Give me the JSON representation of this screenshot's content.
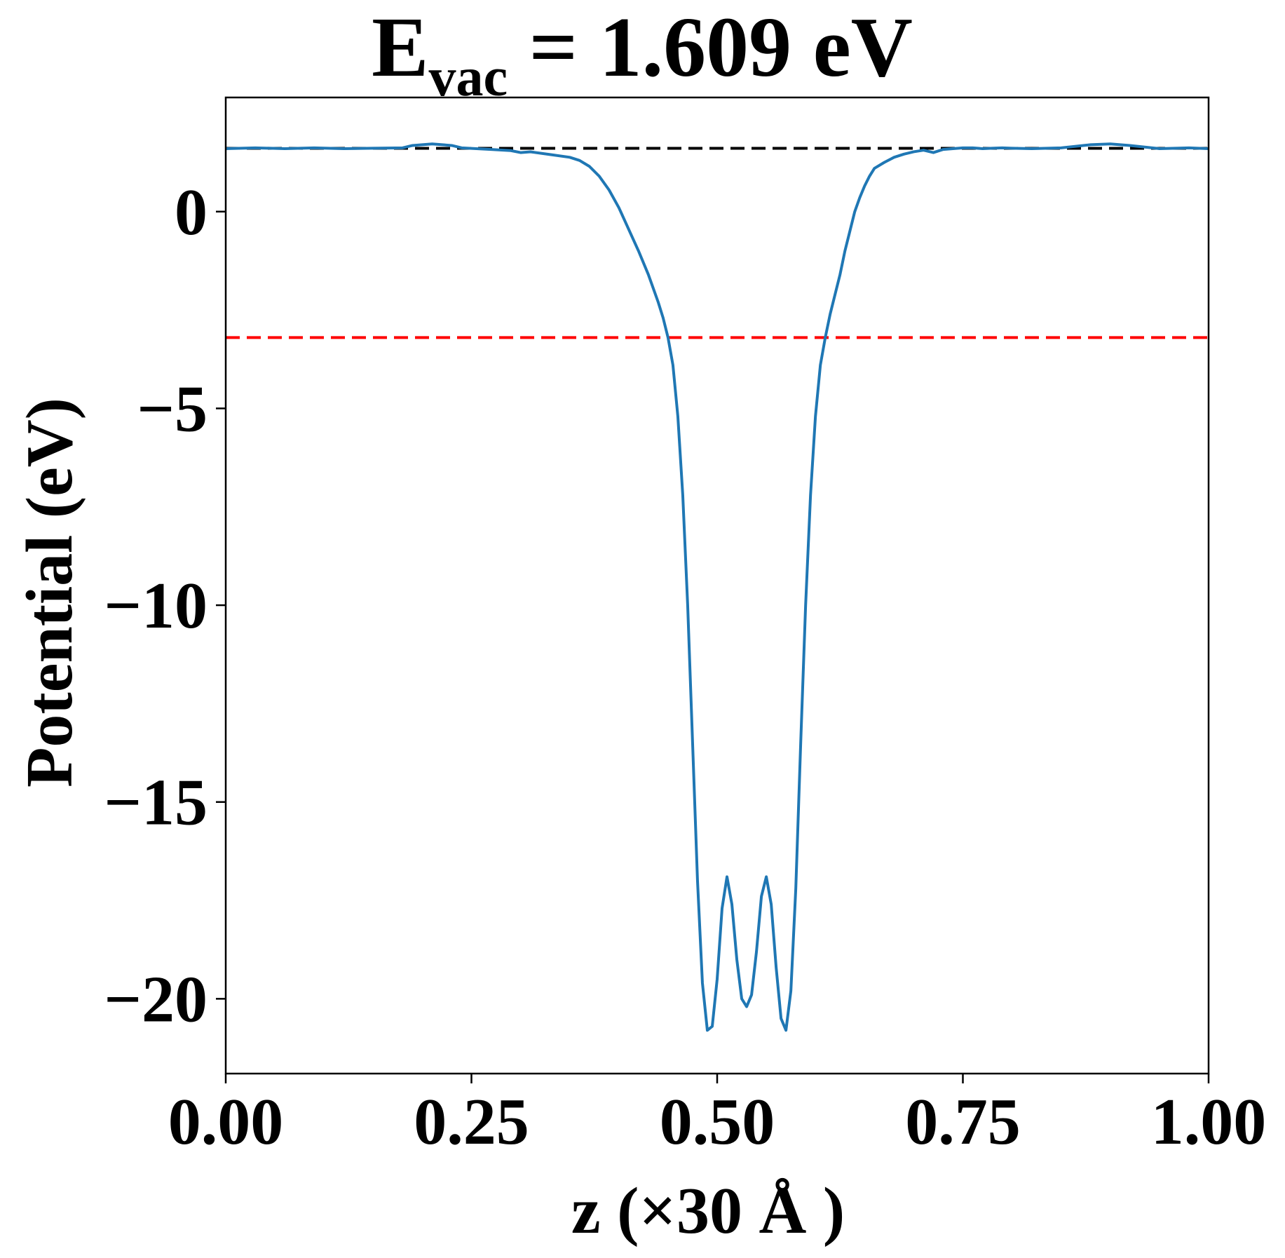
{
  "chart_data": {
    "type": "line",
    "title": {
      "main": "E",
      "subscript": "vac",
      "rest": " = 1.609 eV"
    },
    "xlabel": "z (×30 Å )",
    "ylabel": "Potential (eV)",
    "xlim": [
      0,
      1
    ],
    "ylim": [
      -21.9,
      2.9
    ],
    "x_ticks": [
      0,
      0.25,
      0.5,
      0.75,
      1.0
    ],
    "x_tick_labels": [
      "0.00",
      "0.25",
      "0.50",
      "0.75",
      "1.00"
    ],
    "y_ticks": [
      0,
      -5,
      -10,
      -15,
      -20
    ],
    "y_tick_labels": [
      "0",
      "−5",
      "−10",
      "−15",
      "−20"
    ],
    "grid": false,
    "reference_lines": [
      {
        "y": 1.609,
        "color": "#000000",
        "style": "dashed"
      },
      {
        "y": -3.2,
        "color": "#ff0000",
        "style": "dashed"
      }
    ],
    "series": [
      {
        "color": "#1f77b4",
        "x": [
          0.0,
          0.03,
          0.06,
          0.09,
          0.12,
          0.15,
          0.18,
          0.19,
          0.21,
          0.23,
          0.24,
          0.27,
          0.29,
          0.3,
          0.31,
          0.33,
          0.35,
          0.36,
          0.37,
          0.38,
          0.39,
          0.4,
          0.41,
          0.42,
          0.43,
          0.44,
          0.445,
          0.45,
          0.455,
          0.46,
          0.465,
          0.47,
          0.475,
          0.48,
          0.485,
          0.49,
          0.495,
          0.5,
          0.505,
          0.51,
          0.515,
          0.52,
          0.525,
          0.53,
          0.535,
          0.54,
          0.545,
          0.55,
          0.555,
          0.56,
          0.565,
          0.57,
          0.575,
          0.58,
          0.585,
          0.59,
          0.595,
          0.6,
          0.605,
          0.61,
          0.615,
          0.62,
          0.625,
          0.63,
          0.635,
          0.64,
          0.645,
          0.65,
          0.655,
          0.66,
          0.67,
          0.68,
          0.69,
          0.7,
          0.71,
          0.72,
          0.73,
          0.74,
          0.75,
          0.76,
          0.77,
          0.78,
          0.79,
          0.8,
          0.82,
          0.85,
          0.88,
          0.9,
          0.92,
          0.95,
          0.98,
          1.0
        ],
        "y": [
          1.6,
          1.62,
          1.6,
          1.62,
          1.6,
          1.61,
          1.62,
          1.68,
          1.72,
          1.68,
          1.62,
          1.58,
          1.55,
          1.5,
          1.52,
          1.45,
          1.38,
          1.3,
          1.15,
          0.9,
          0.55,
          0.1,
          -0.45,
          -1.0,
          -1.6,
          -2.3,
          -2.7,
          -3.2,
          -3.9,
          -5.2,
          -7.2,
          -10.0,
          -13.5,
          -17.0,
          -19.6,
          -20.8,
          -20.7,
          -19.5,
          -17.7,
          -16.9,
          -17.6,
          -19.0,
          -20.0,
          -20.2,
          -19.9,
          -18.8,
          -17.4,
          -16.9,
          -17.6,
          -19.2,
          -20.5,
          -20.8,
          -19.8,
          -17.2,
          -13.5,
          -10.0,
          -7.2,
          -5.2,
          -3.9,
          -3.2,
          -2.6,
          -2.1,
          -1.6,
          -1.0,
          -0.5,
          0.0,
          0.35,
          0.65,
          0.9,
          1.1,
          1.25,
          1.38,
          1.46,
          1.52,
          1.56,
          1.5,
          1.58,
          1.6,
          1.62,
          1.62,
          1.6,
          1.61,
          1.62,
          1.61,
          1.6,
          1.62,
          1.7,
          1.72,
          1.68,
          1.6,
          1.62,
          1.6
        ]
      }
    ]
  }
}
